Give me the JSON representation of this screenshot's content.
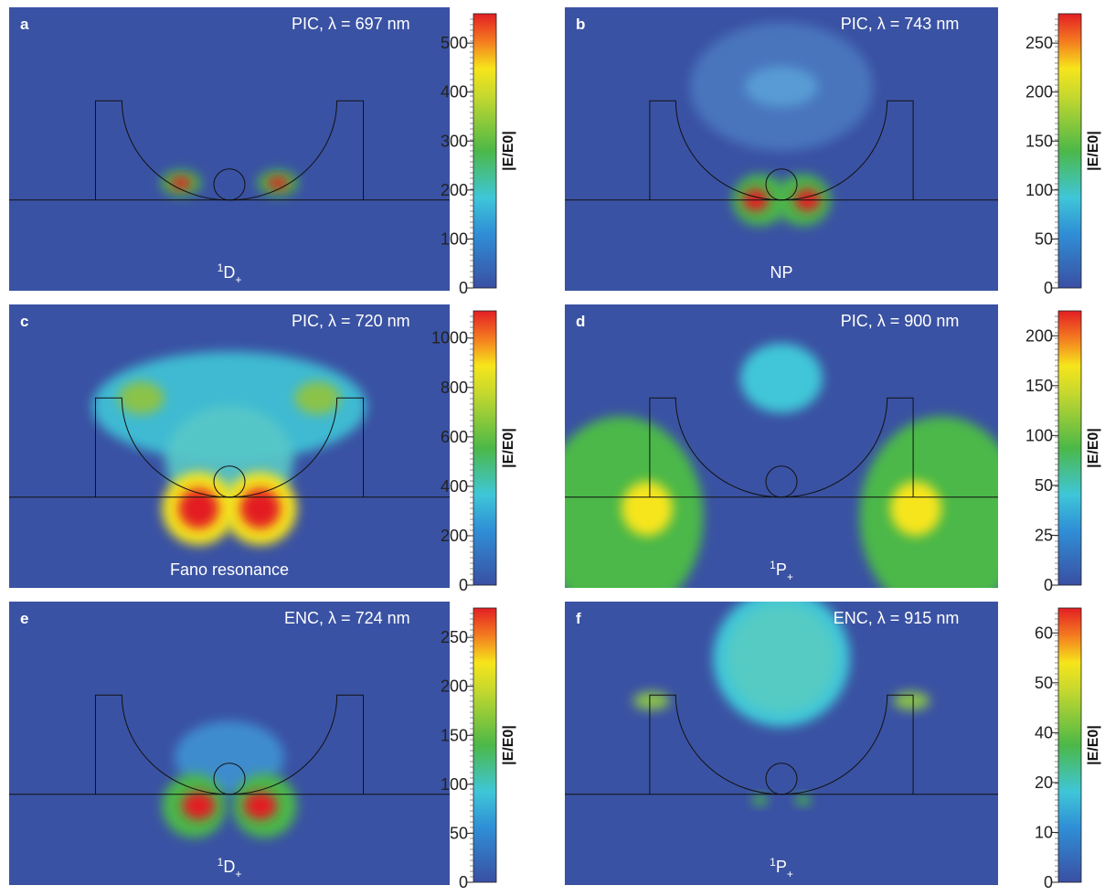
{
  "panels": [
    {
      "letter": "a",
      "title": "PIC, λ = 697 nm",
      "mode": {
        "sup": "1",
        "base": "D",
        "sub": "+"
      },
      "colorbar": {
        "label": "|E/E0|",
        "ylim": [
          0,
          560
        ],
        "yticks": [
          0,
          100,
          200,
          300,
          400,
          500
        ]
      }
    },
    {
      "letter": "b",
      "title": "PIC, λ = 743 nm",
      "mode": {
        "base": "NP"
      },
      "colorbar": {
        "label": "|E/E0|",
        "ylim": [
          0,
          280
        ],
        "yticks": [
          0,
          50,
          100,
          150,
          200,
          250
        ]
      }
    },
    {
      "letter": "c",
      "title": "PIC, λ = 720 nm",
      "mode": {
        "base": "Fano resonance"
      },
      "colorbar": {
        "label": "|E/E0|",
        "ylim": [
          0,
          1110
        ],
        "yticks": [
          0,
          200,
          400,
          600,
          800,
          1000
        ]
      }
    },
    {
      "letter": "d",
      "title": "PIC, λ = 900 nm",
      "mode": {
        "sup": "1",
        "base": "P",
        "sub": "+"
      },
      "colorbar": {
        "label": "|E/E0|",
        "scale": "segmented",
        "ylim": [
          0,
          225
        ],
        "yticks": [
          0,
          25,
          50,
          100,
          150,
          200
        ]
      }
    },
    {
      "letter": "e",
      "title": "ENC, λ = 724 nm",
      "mode": {
        "sup": "1",
        "base": "D",
        "sub": "+"
      },
      "colorbar": {
        "label": "|E/E0|",
        "ylim": [
          0,
          280
        ],
        "yticks": [
          0,
          50,
          100,
          150,
          200,
          250
        ]
      }
    },
    {
      "letter": "f",
      "title": "ENC, λ = 915 nm",
      "mode": {
        "sup": "1",
        "base": "P",
        "sub": "+"
      },
      "colorbar": {
        "label": "|E/E0|",
        "scale": "segmented",
        "ylim": [
          0,
          65
        ],
        "yticks": [
          0,
          10,
          20,
          40,
          50,
          60
        ]
      }
    }
  ]
}
